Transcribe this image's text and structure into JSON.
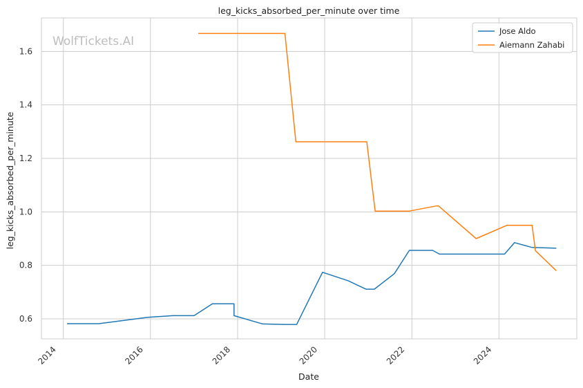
{
  "chart_data": {
    "type": "line",
    "title": "leg_kicks_absorbed_per_minute over time",
    "xlabel": "Date",
    "ylabel": "leg_kicks_absorbed_per_minute",
    "watermark": "WolfTickets.AI",
    "x_axis": "date",
    "xlim": [
      "2013-07-01",
      "2025-10-15"
    ],
    "ylim": [
      0.525,
      1.725
    ],
    "xticks": [
      "2014",
      "2016",
      "2018",
      "2020",
      "2022",
      "2024"
    ],
    "yticks": [
      "0.6",
      "0.8",
      "1.0",
      "1.2",
      "1.4",
      "1.6"
    ],
    "grid": true,
    "legend_position": "top-right",
    "series": [
      {
        "name": "Jose Aldo",
        "color": "#1f77b4",
        "points": [
          [
            "2014-02-01",
            0.582
          ],
          [
            "2014-10-25",
            0.582
          ],
          [
            "2015-12-12",
            0.606
          ],
          [
            "2016-07-09",
            0.612
          ],
          [
            "2017-01-01",
            0.612
          ],
          [
            "2017-06-03",
            0.656
          ],
          [
            "2017-12-02",
            0.656
          ],
          [
            "2017-12-02",
            0.612
          ],
          [
            "2018-07-28",
            0.581
          ],
          [
            "2019-02-02",
            0.579
          ],
          [
            "2019-05-11",
            0.579
          ],
          [
            "2019-12-14",
            0.774
          ],
          [
            "2020-07-18",
            0.742
          ],
          [
            "2020-12-12",
            0.711
          ],
          [
            "2021-02-20",
            0.711
          ],
          [
            "2021-08-07",
            0.769
          ],
          [
            "2021-12-11",
            0.856
          ],
          [
            "2022-06-25",
            0.856
          ],
          [
            "2022-08-20",
            0.842
          ],
          [
            "2024-02-17",
            0.842
          ],
          [
            "2024-05-11",
            0.885
          ],
          [
            "2024-10-05",
            0.867
          ],
          [
            "2025-04-26",
            0.864
          ]
        ]
      },
      {
        "name": "Aiemann Zahabi",
        "color": "#ff7f0e",
        "points": [
          [
            "2017-02-04",
            1.667
          ],
          [
            "2019-02-02",
            1.667
          ],
          [
            "2019-05-04",
            1.262
          ],
          [
            "2020-12-19",
            1.262
          ],
          [
            "2021-02-27",
            1.003
          ],
          [
            "2021-12-11",
            1.003
          ],
          [
            "2022-07-23",
            1.022
          ],
          [
            "2022-08-13",
            1.022
          ],
          [
            "2023-06-24",
            0.9
          ],
          [
            "2024-03-09",
            0.95
          ],
          [
            "2024-10-05",
            0.95
          ],
          [
            "2024-11-02",
            0.855
          ],
          [
            "2025-04-26",
            0.78
          ]
        ]
      }
    ]
  }
}
